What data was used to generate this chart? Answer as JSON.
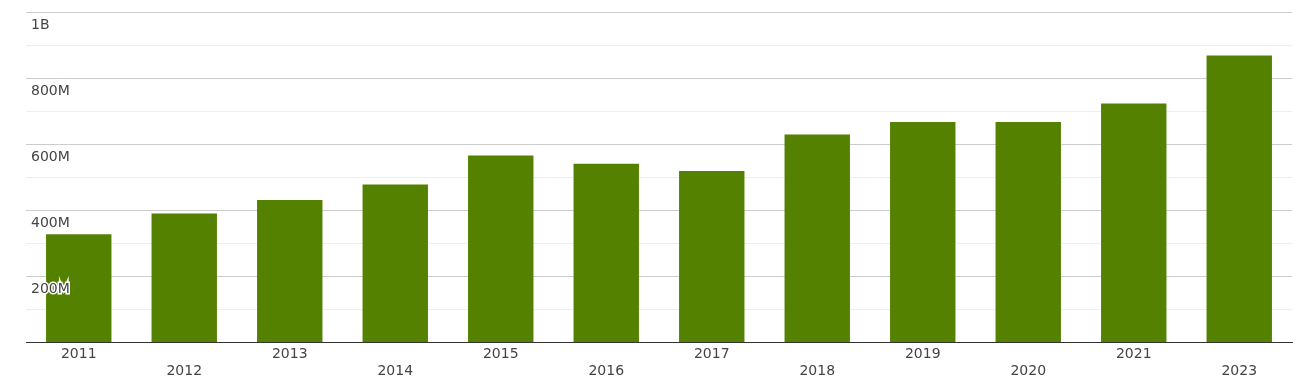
{
  "chart_data": {
    "type": "bar",
    "categories": [
      "2011",
      "2012",
      "2013",
      "2014",
      "2015",
      "2016",
      "2017",
      "2018",
      "2019",
      "2020",
      "2021",
      "2023"
    ],
    "values": [
      327000000,
      390000000,
      431000000,
      478000000,
      566000000,
      541000000,
      519000000,
      629000000,
      667000000,
      667000000,
      723000000,
      868000000
    ],
    "color": "#548200",
    "ylim": [
      0,
      1000000000
    ],
    "yticks": [
      {
        "value": 0,
        "label": null
      },
      {
        "value": 100000000,
        "label": null
      },
      {
        "value": 200000000,
        "label": "200M"
      },
      {
        "value": 300000000,
        "label": null
      },
      {
        "value": 400000000,
        "label": "400M"
      },
      {
        "value": 500000000,
        "label": null
      },
      {
        "value": 600000000,
        "label": "600M"
      },
      {
        "value": 700000000,
        "label": null
      },
      {
        "value": 800000000,
        "label": "800M"
      },
      {
        "value": 900000000,
        "label": null
      },
      {
        "value": 1000000000,
        "label": "1B"
      }
    ],
    "grid": "y",
    "legend": false
  }
}
